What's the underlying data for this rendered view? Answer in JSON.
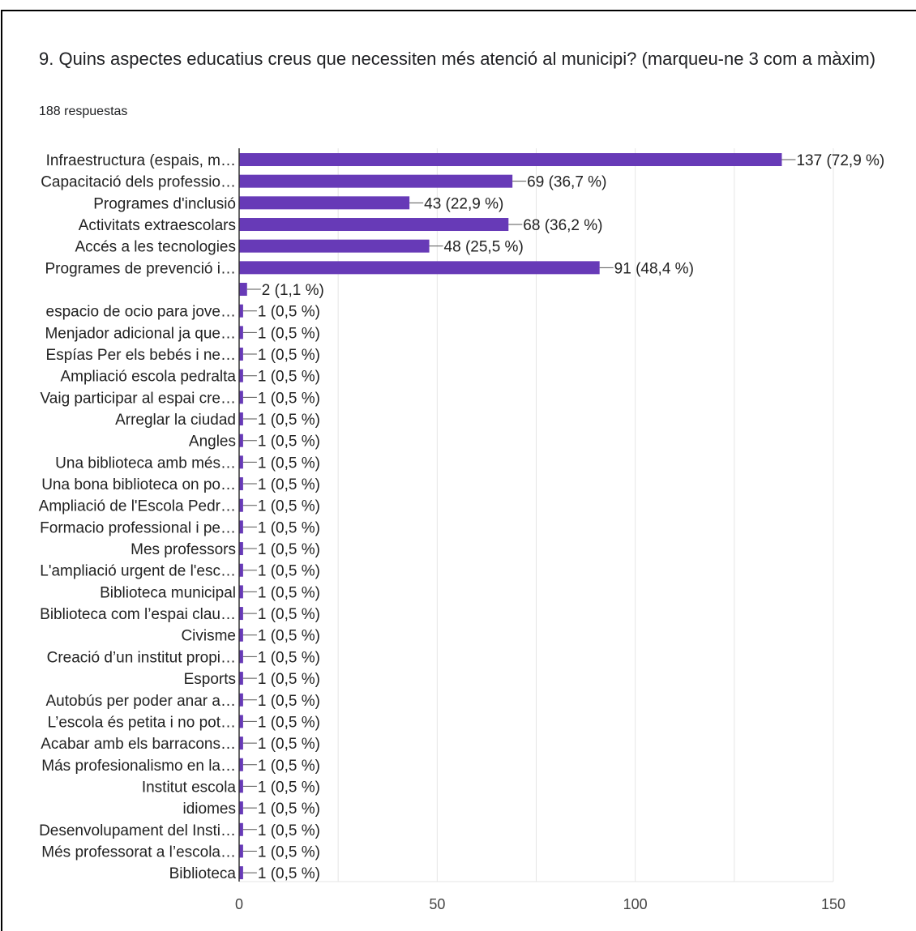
{
  "question": {
    "title": "9. Quins aspectes educatius creus que necessiten més atenció al municipi? (marqueu-ne 3 com a màxim)",
    "response_count": "188 respuestas"
  },
  "colors": {
    "bar": "#673ab7",
    "grid": "#e6e6e6",
    "axis": "#333333"
  },
  "chart_data": {
    "type": "bar",
    "orientation": "horizontal",
    "title": "",
    "xlabel": "",
    "ylabel": "",
    "xlim": [
      0,
      150
    ],
    "x_ticks": [
      0,
      50,
      100,
      150
    ],
    "grid": true,
    "legend": "none",
    "categories": [
      "Infraestructura (espais, m…",
      "Capacitació dels professio…",
      "Programes d'inclusió",
      "Activitats extraescolars",
      "Accés a les tecnologies",
      "Programes de prevenció i…",
      "",
      "espacio de ocio para jove…",
      "Menjador adicional ja que…",
      "Espías Per els bebés i ne…",
      "Ampliació escola pedralta",
      "Vaig participar al espai cre…",
      "Arreglar la ciudad",
      "Angles",
      "Una biblioteca amb més…",
      "Una bona biblioteca on po…",
      "Ampliació de l'Escola Pedr…",
      "Formacio professional i pe…",
      "Mes professors",
      "L'ampliació urgent de l'esc…",
      "Biblioteca municipal",
      "Biblioteca com l’espai clau…",
      "Civisme",
      "Creació d’un institut propi…",
      "Esports",
      "Autobús per poder anar a…",
      "L’escola és petita i no pot…",
      "Acabar amb els barracons…",
      "Más profesionalismo en la…",
      "Institut escola",
      "idiomes",
      "Desenvolupament del Insti…",
      "Més professorat a l’escola…",
      "Biblioteca"
    ],
    "values": [
      137,
      69,
      43,
      68,
      48,
      91,
      2,
      1,
      1,
      1,
      1,
      1,
      1,
      1,
      1,
      1,
      1,
      1,
      1,
      1,
      1,
      1,
      1,
      1,
      1,
      1,
      1,
      1,
      1,
      1,
      1,
      1,
      1,
      1
    ],
    "value_labels": [
      "137 (72,9 %)",
      "69 (36,7 %)",
      "43 (22,9 %)",
      "68 (36,2 %)",
      "48 (25,5 %)",
      "91 (48,4 %)",
      "2 (1,1 %)",
      "1 (0,5 %)",
      "1 (0,5 %)",
      "1 (0,5 %)",
      "1 (0,5 %)",
      "1 (0,5 %)",
      "1 (0,5 %)",
      "1 (0,5 %)",
      "1 (0,5 %)",
      "1 (0,5 %)",
      "1 (0,5 %)",
      "1 (0,5 %)",
      "1 (0,5 %)",
      "1 (0,5 %)",
      "1 (0,5 %)",
      "1 (0,5 %)",
      "1 (0,5 %)",
      "1 (0,5 %)",
      "1 (0,5 %)",
      "1 (0,5 %)",
      "1 (0,5 %)",
      "1 (0,5 %)",
      "1 (0,5 %)",
      "1 (0,5 %)",
      "1 (0,5 %)",
      "1 (0,5 %)",
      "1 (0,5 %)",
      "1 (0,5 %)"
    ]
  }
}
